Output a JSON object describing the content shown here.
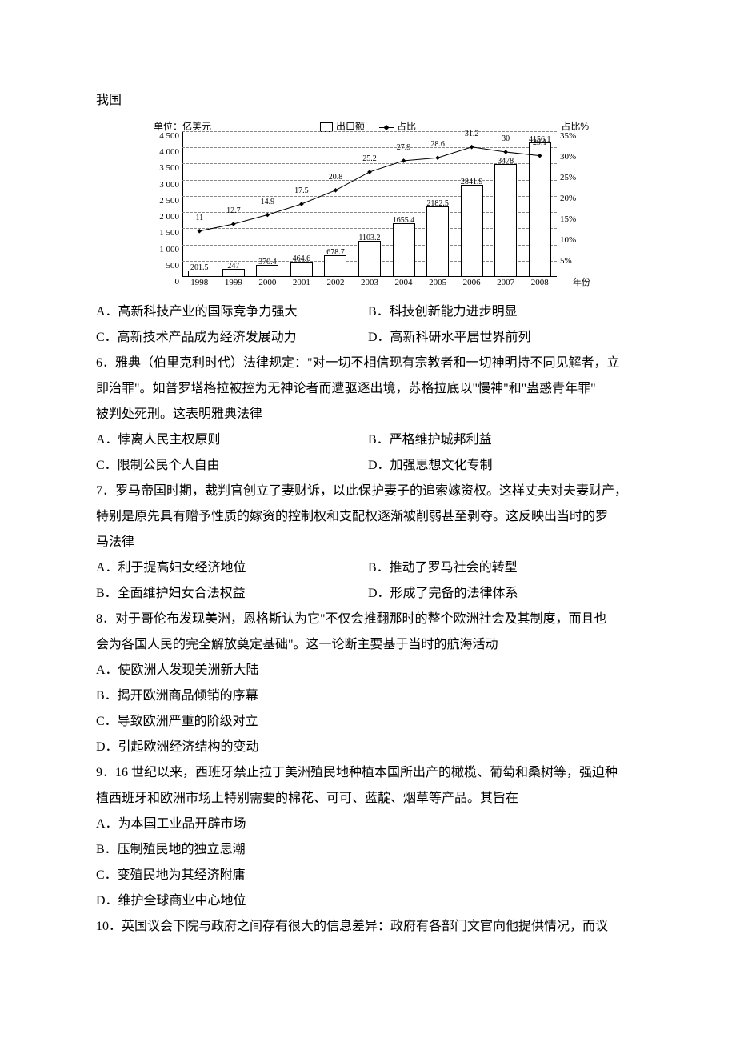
{
  "lead_text": "我国",
  "chart": {
    "type": "bar+line",
    "unit_left": "单位：亿美元",
    "unit_right": "占比%",
    "legend_bar": "出口额",
    "legend_line": "占比",
    "x_unit": "年份",
    "years": [
      "1998",
      "1999",
      "2000",
      "2001",
      "2002",
      "2003",
      "2004",
      "2005",
      "2006",
      "2007",
      "2008"
    ],
    "bar_values": [
      201.5,
      247,
      370.4,
      464.6,
      678.7,
      1103.2,
      1655.4,
      2182.5,
      2841.9,
      3478,
      4156.1
    ],
    "line_values": [
      11,
      12.7,
      14.9,
      17.5,
      20.8,
      25.2,
      27.9,
      28.6,
      31.2,
      30,
      29.1
    ],
    "left_ylim": [
      0,
      4500
    ],
    "left_ticks": [
      0,
      500,
      1000,
      1500,
      2000,
      2500,
      3000,
      3500,
      4000,
      4500
    ],
    "right_ylim": [
      0,
      35
    ],
    "right_ticks": [
      5,
      10,
      15,
      20,
      25,
      30,
      35
    ],
    "bar_color": "#ffffff",
    "bar_border": "#000000",
    "grid_color": "#888888",
    "line_color": "#000000",
    "background": "#ffffff",
    "title_fontsize": 12,
    "label_fontsize": 11,
    "value_fontsize": 10
  },
  "q5_options": {
    "A": "A．高新科技产业的国际竞争力强大",
    "B": "B．科技创新能力进步明显",
    "C": "C．高新技术产品成为经济发展动力",
    "D": "D．高新科研水平居世界前列"
  },
  "q6": {
    "stem1": "6．雅典（伯里克利时代）法律规定：\"对一切不相信现有宗教者和一切神明持不同见解者，立",
    "stem2": "即治罪\"。如普罗塔格拉被控为无神论者而遭驱逐出境，苏格拉底以\"慢神\"和\"蛊惑青年罪\"",
    "stem3": "被判处死刑。这表明雅典法律",
    "A": "A．悖离人民主权原则",
    "B": "B．严格维护城邦利益",
    "C": "C．限制公民个人自由",
    "D": "D．加强思想文化专制"
  },
  "q7": {
    "stem1": "7．罗马帝国时期，裁判官创立了妻财诉，以此保护妻子的追索嫁资权。这样丈夫对夫妻财产，",
    "stem2": "特别是原先具有赠予性质的嫁资的控制权和支配权逐渐被削弱甚至剥夺。这反映出当时的罗",
    "stem3": "马法律",
    "A": "A．利于提高妇女经济地位",
    "B": "B．推动了罗马社会的转型",
    "C": "B．全面维护妇女合法权益",
    "D": "D．形成了完备的法律体系"
  },
  "q8": {
    "stem1": "8．对于哥伦布发现美洲，恩格斯认为它\"不仅会推翻那时的整个欧洲社会及其制度，而且也",
    "stem2": "会为各国人民的完全解放奠定基础\"。这一论断主要基于当时的航海活动",
    "A": "A．使欧洲人发现美洲新大陆",
    "B": "B．揭开欧洲商品倾销的序幕",
    "C": "C．导致欧洲严重的阶级对立",
    "D": "D．引起欧洲经济结构的变动"
  },
  "q9": {
    "stem1": "9．16 世纪以来，西班牙禁止拉丁美洲殖民地种植本国所出产的橄榄、葡萄和桑树等，强迫种",
    "stem2": "植西班牙和欧洲市场上特别需要的棉花、可可、蓝靛、烟草等产品。其旨在",
    "A": "A．为本国工业品开辟市场",
    "B": "B．压制殖民地的独立思潮",
    "C": "C．变殖民地为其经济附庸",
    "D": "D．维护全球商业中心地位"
  },
  "q10": {
    "stem1": "10．英国议会下院与政府之间存有很大的信息差异：政府有各部门文官向他提供情况，而议"
  }
}
